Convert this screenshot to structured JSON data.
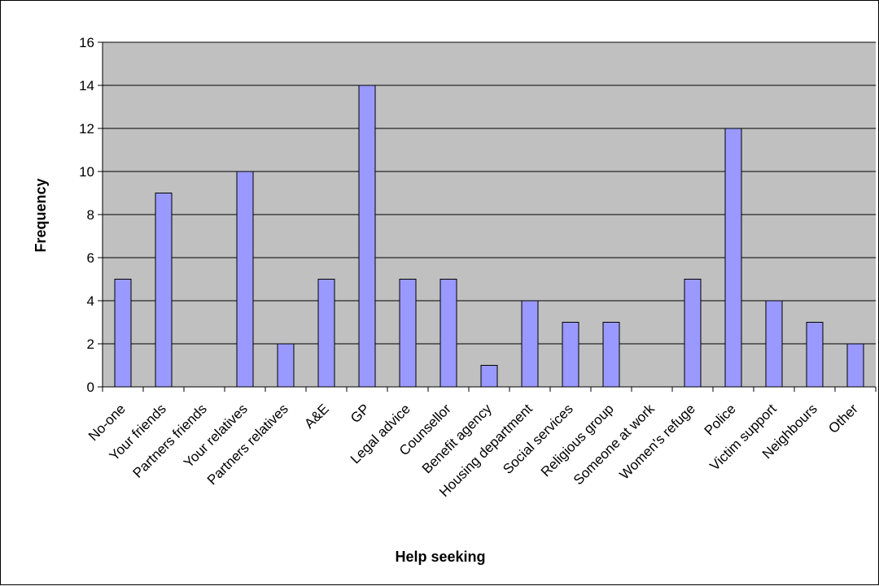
{
  "chart_data": {
    "type": "bar",
    "title": "",
    "xlabel": "Help seeking",
    "ylabel": "Frequency",
    "ylim": [
      0,
      16
    ],
    "yticks": [
      0,
      2,
      4,
      6,
      8,
      10,
      12,
      14,
      16
    ],
    "grid": true,
    "legend": "none",
    "categories": [
      "No-one",
      "Your friends",
      "Partners friends",
      "Your relatives",
      "Partners relatives",
      "A&E",
      "GP",
      "Legal advice",
      "Counsellor",
      "Benefit agency",
      "Housing department",
      "Social services",
      "Religious group",
      "Someone at work",
      "Women's refuge",
      "Police",
      "Victim support",
      "Neighbours",
      "Other"
    ],
    "values": [
      5,
      9,
      0,
      10,
      2,
      5,
      14,
      5,
      5,
      1,
      4,
      3,
      3,
      0,
      5,
      12,
      4,
      3,
      2
    ],
    "colors": {
      "bar_fill": "#9999ff",
      "plot_background": "#c0c0c0",
      "gridline": "#000000",
      "frame": "#000000"
    }
  }
}
